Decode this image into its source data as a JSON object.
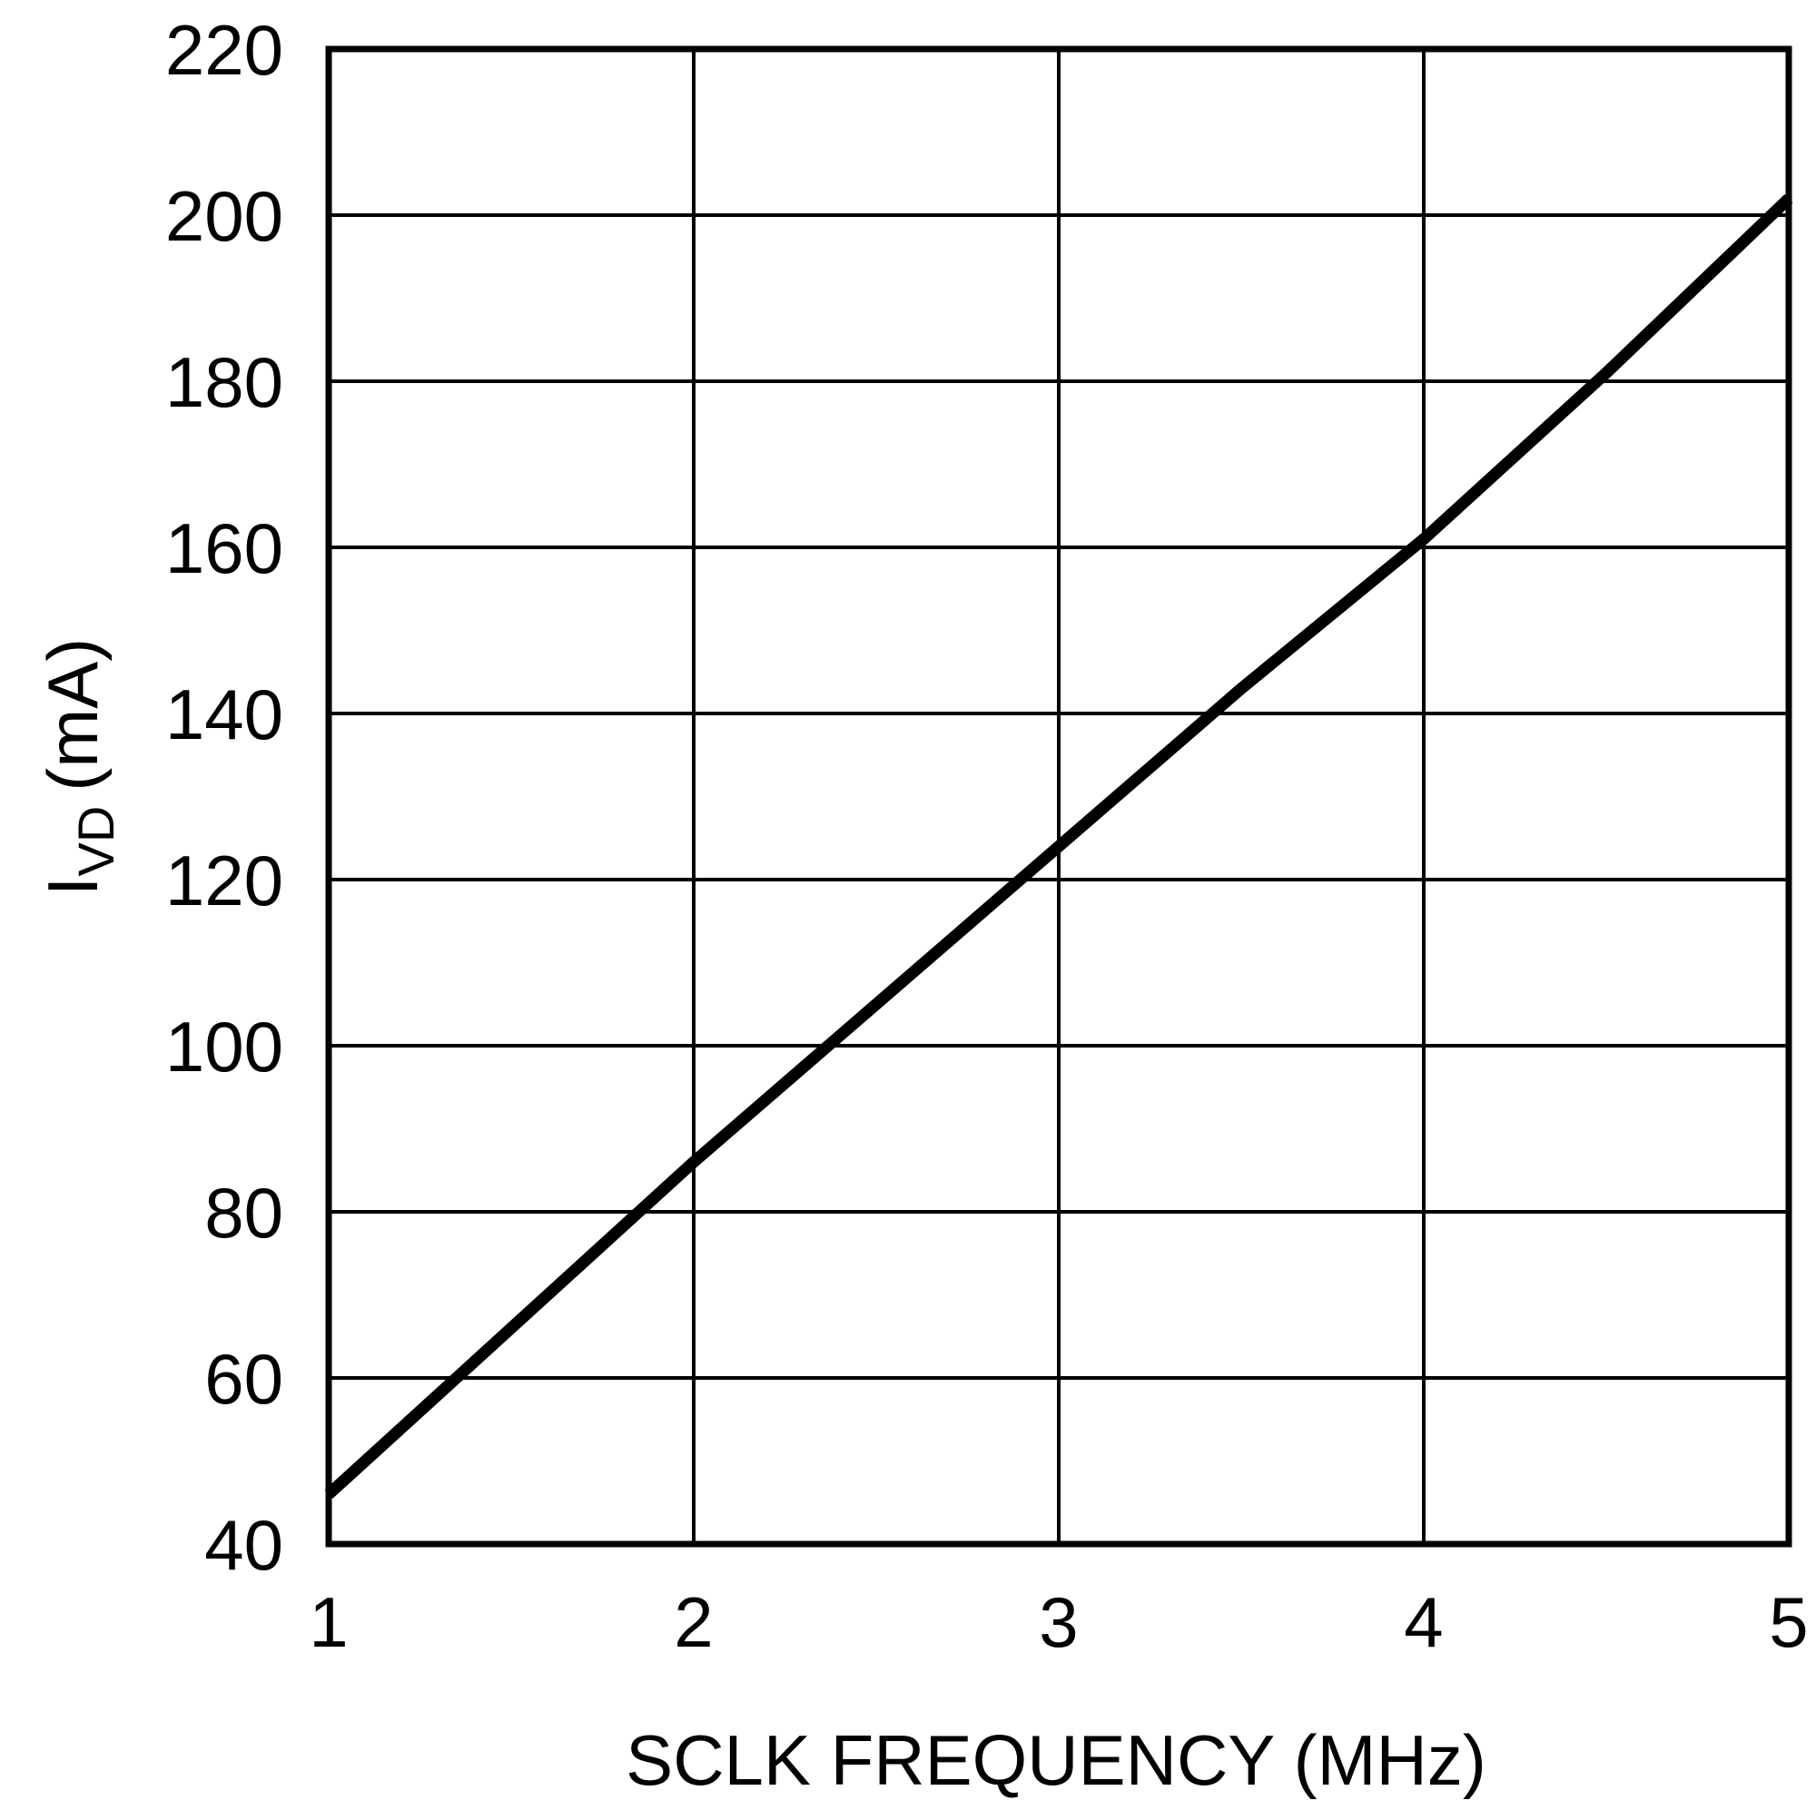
{
  "chart_data": {
    "type": "line",
    "xlabel": "SCLK FREQUENCY (MHz)",
    "ylabel": {
      "main": "I",
      "subscript": "VD",
      "unit": "(mA)"
    },
    "xlim": [
      1,
      5
    ],
    "ylim": [
      40,
      220
    ],
    "xticks": [
      1,
      2,
      3,
      4,
      5
    ],
    "yticks": [
      40,
      60,
      80,
      100,
      120,
      140,
      160,
      180,
      200,
      220
    ],
    "grid": true,
    "series": [
      {
        "x": [
          1.0,
          1.5,
          2.0,
          2.5,
          3.0,
          3.5,
          4.0,
          4.5,
          5.0
        ],
        "y": [
          46,
          66,
          86,
          105,
          124,
          143,
          161,
          181,
          202
        ]
      }
    ],
    "colors": {
      "line": "#000000",
      "grid": "#000000",
      "background": "#ffffff"
    }
  }
}
